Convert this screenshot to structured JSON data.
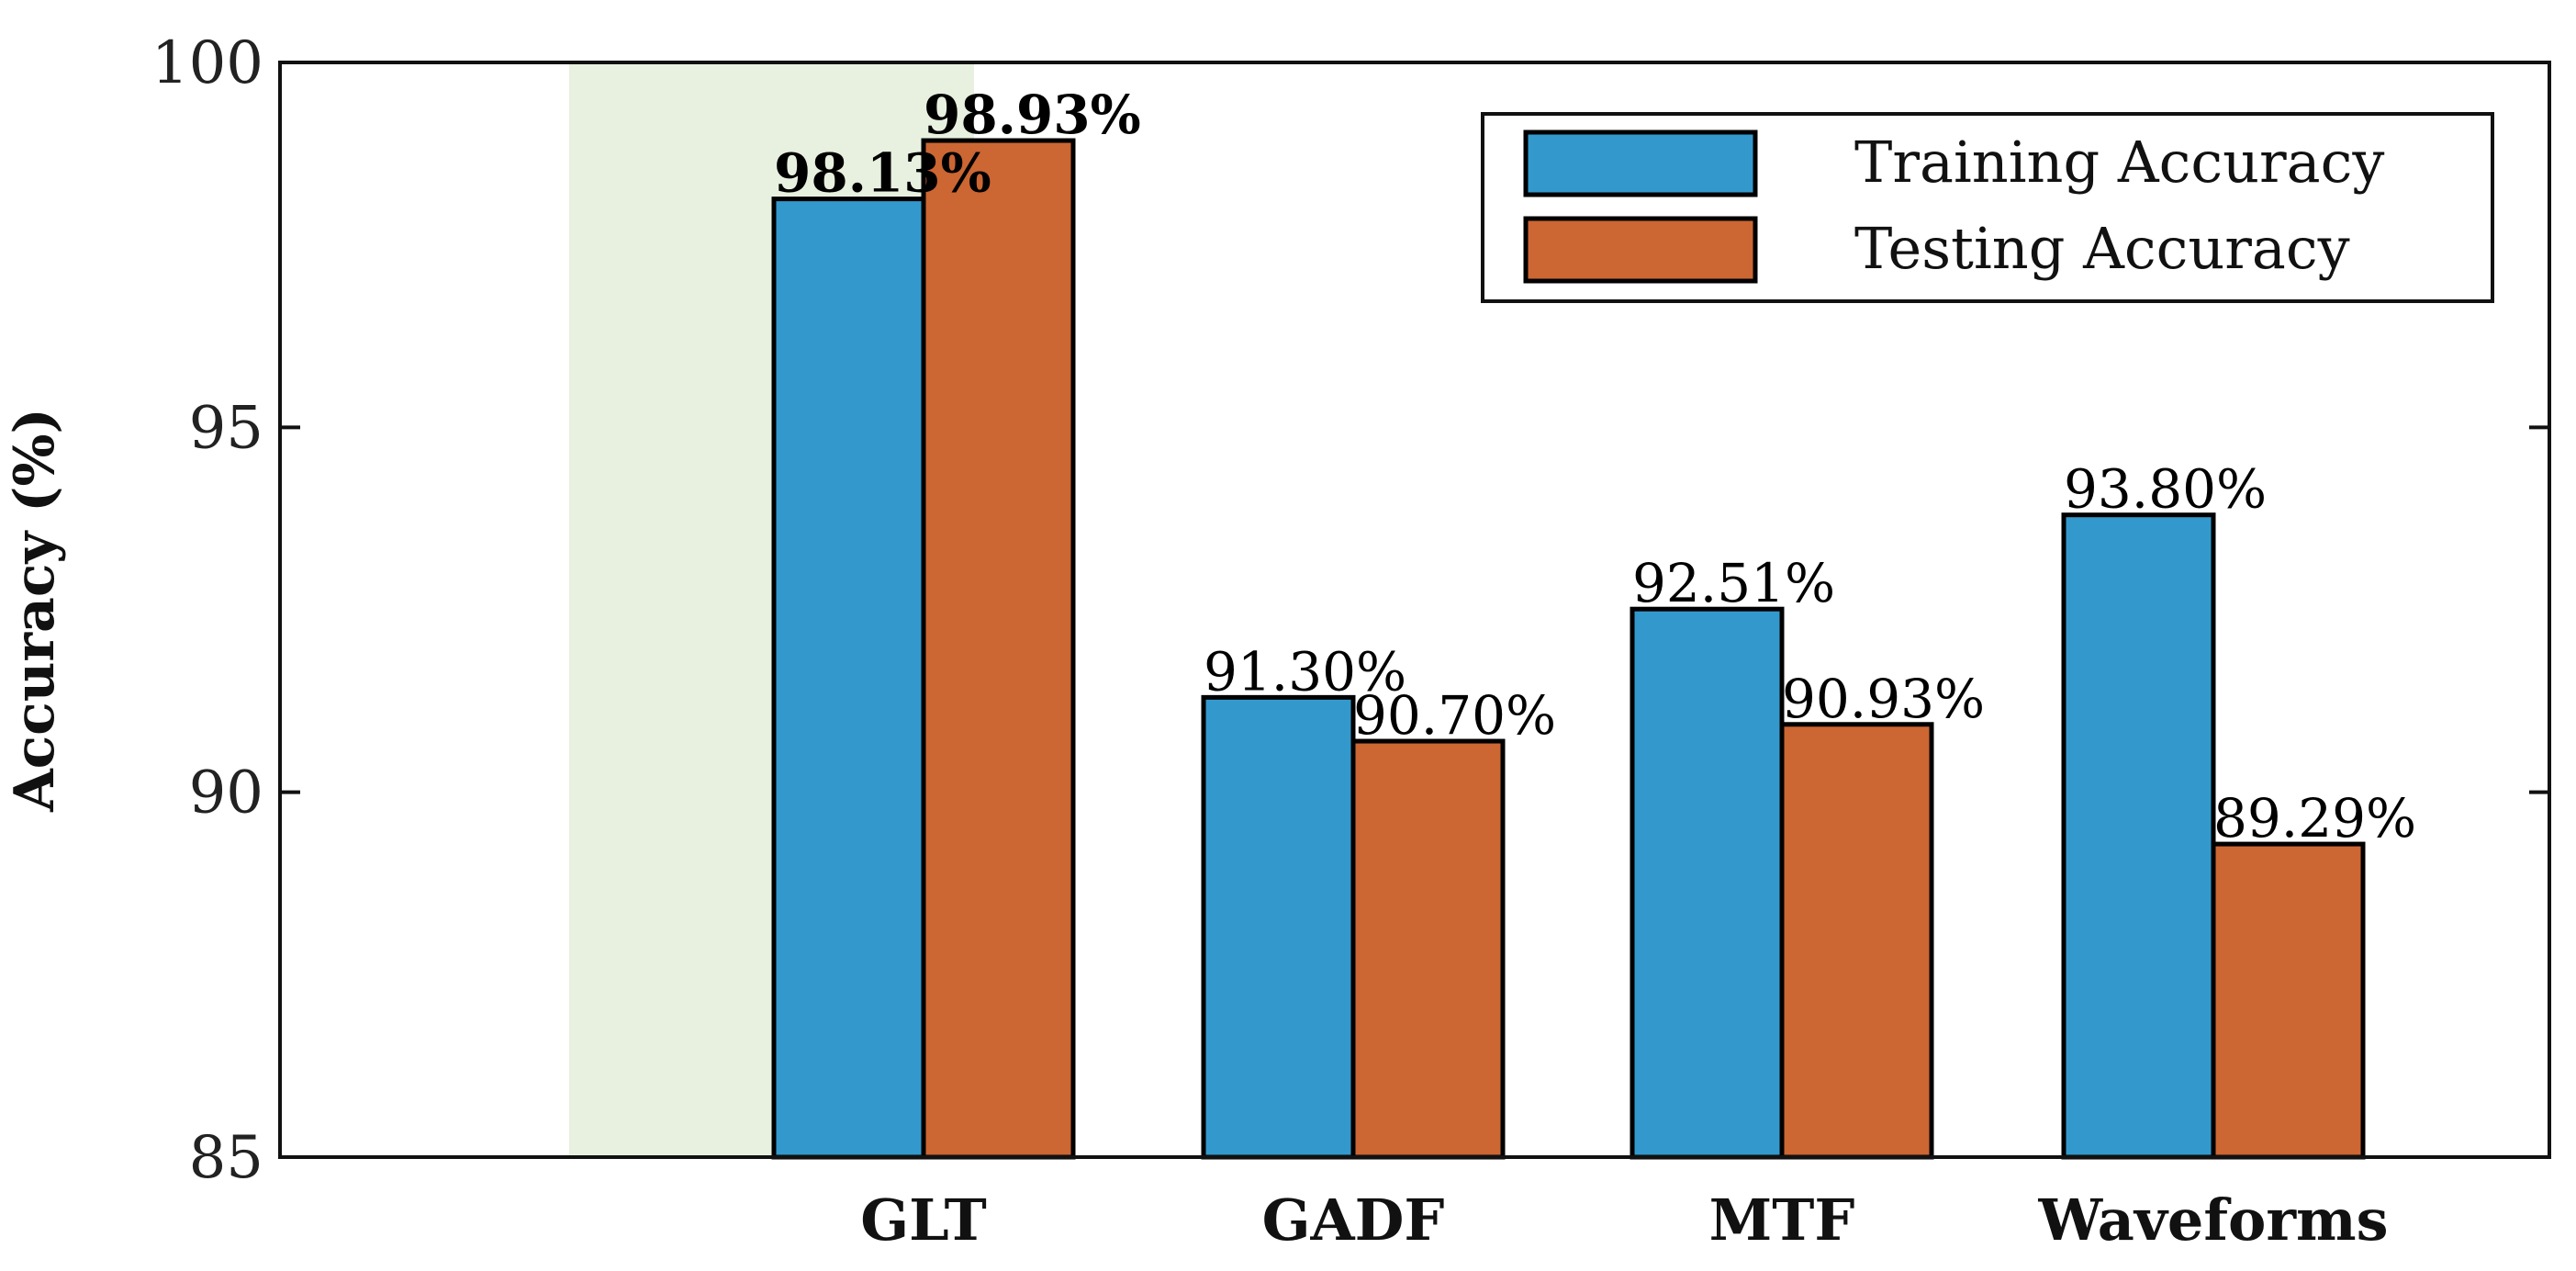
{
  "chart_data": {
    "type": "bar",
    "categories": [
      "GLT",
      "GADF",
      "MTF",
      "Waveforms"
    ],
    "series": [
      {
        "name": "Training Accuracy",
        "color": "#3399CC",
        "values": [
          98.13,
          91.3,
          92.51,
          93.8
        ],
        "labels": [
          "98.13%",
          "91.30%",
          "92.51%",
          "93.80%"
        ]
      },
      {
        "name": "Testing Accuracy",
        "color": "#CC6633",
        "values": [
          98.93,
          90.7,
          90.93,
          89.29
        ],
        "labels": [
          "98.93%",
          "90.70%",
          "90.93%",
          "89.29%"
        ]
      }
    ],
    "highlight_category": "GLT",
    "highlight_color": "#E8F0DF",
    "title": "",
    "xlabel": "",
    "ylabel": "Accuracy (%)",
    "ylim": [
      85,
      100
    ],
    "yticks": [
      85,
      90,
      95,
      100
    ],
    "ytick_labels": [
      "85",
      "90",
      "95",
      "100"
    ],
    "legend_position": "top-right",
    "grid": false
  }
}
